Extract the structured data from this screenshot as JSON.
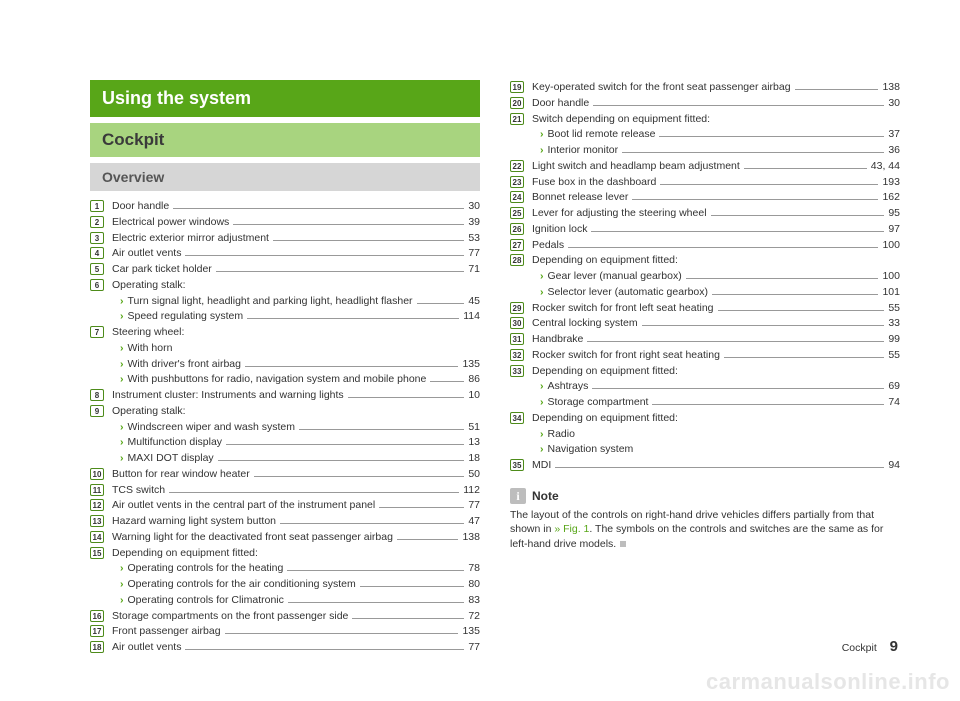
{
  "colors": {
    "banner_dark": "#58a618",
    "banner_light": "#a8d47f",
    "banner_gray": "#d6d6d6",
    "text": "#333333",
    "accent": "#58a618",
    "watermark": "#e6e6e6"
  },
  "typography": {
    "body_pt": 10.5,
    "banner_dark_pt": 18,
    "banner_light_pt": 17,
    "banner_gray_pt": 14
  },
  "banners": {
    "using": "Using the system",
    "cockpit": "Cockpit",
    "overview": "Overview"
  },
  "note": {
    "icon": "i",
    "title": "Note",
    "body_pre": "The layout of the controls on right-hand drive vehicles differs partially from that shown in ",
    "fig": "» Fig. 1",
    "body_post": ". The symbols on the controls and switches are the same as for left-hand drive models."
  },
  "footer": {
    "label": "Cockpit",
    "page": "9"
  },
  "watermark": "carmanualsonline.info",
  "left": [
    {
      "n": "1",
      "t": "Door handle",
      "p": "30"
    },
    {
      "n": "2",
      "t": "Electrical power windows",
      "p": "39"
    },
    {
      "n": "3",
      "t": "Electric exterior mirror adjustment",
      "p": "53"
    },
    {
      "n": "4",
      "t": "Air outlet vents",
      "p": "77"
    },
    {
      "n": "5",
      "t": "Car park ticket holder",
      "p": "71"
    },
    {
      "n": "6",
      "t": "Operating stalk:",
      "sub": [
        {
          "t": "Turn signal light, headlight and parking light, headlight flasher",
          "p": "45"
        },
        {
          "t": "Speed regulating system",
          "p": "114"
        }
      ]
    },
    {
      "n": "7",
      "t": "Steering wheel:",
      "sub": [
        {
          "t": "With horn",
          "p": ""
        },
        {
          "t": "With driver's front airbag",
          "p": "135"
        },
        {
          "t": "With pushbuttons for radio, navigation system and mobile phone",
          "p": "86",
          "wrap": true
        }
      ]
    },
    {
      "n": "8",
      "t": "Instrument cluster: Instruments and warning lights",
      "p": "10"
    },
    {
      "n": "9",
      "t": "Operating stalk:",
      "sub": [
        {
          "t": "Windscreen wiper and wash system",
          "p": "51"
        },
        {
          "t": "Multifunction display",
          "p": "13"
        },
        {
          "t": "MAXI DOT display",
          "p": "18"
        }
      ]
    },
    {
      "n": "10",
      "t": "Button for rear window heater",
      "p": "50"
    },
    {
      "n": "11",
      "t": "TCS switch",
      "p": "112"
    },
    {
      "n": "12",
      "t": "Air outlet vents in the central part of the instrument panel",
      "p": "77"
    },
    {
      "n": "13",
      "t": "Hazard warning light system button",
      "p": "47"
    },
    {
      "n": "14",
      "t": "Warning light for the deactivated front seat passenger airbag",
      "p": "138"
    },
    {
      "n": "15",
      "t": "Depending on equipment fitted:",
      "sub": [
        {
          "t": "Operating controls for the heating",
          "p": "78"
        },
        {
          "t": "Operating controls for the air conditioning system",
          "p": "80"
        },
        {
          "t": "Operating controls for Climatronic",
          "p": "83"
        }
      ]
    },
    {
      "n": "16",
      "t": "Storage compartments on the front passenger side",
      "p": "72"
    },
    {
      "n": "17",
      "t": "Front passenger airbag",
      "p": "135"
    },
    {
      "n": "18",
      "t": "Air outlet vents",
      "p": "77"
    }
  ],
  "right": [
    {
      "n": "19",
      "t": "Key-operated switch for the front seat passenger airbag",
      "p": "138"
    },
    {
      "n": "20",
      "t": "Door handle",
      "p": "30"
    },
    {
      "n": "21",
      "t": "Switch depending on equipment fitted:",
      "sub": [
        {
          "t": "Boot lid remote release",
          "p": "37"
        },
        {
          "t": "Interior monitor",
          "p": "36"
        }
      ]
    },
    {
      "n": "22",
      "t": "Light switch and headlamp beam adjustment",
      "p": "43, 44"
    },
    {
      "n": "23",
      "t": "Fuse box in the dashboard",
      "p": "193"
    },
    {
      "n": "24",
      "t": "Bonnet release lever",
      "p": "162"
    },
    {
      "n": "25",
      "t": "Lever for adjusting the steering wheel",
      "p": "95"
    },
    {
      "n": "26",
      "t": "Ignition lock",
      "p": "97"
    },
    {
      "n": "27",
      "t": "Pedals",
      "p": "100"
    },
    {
      "n": "28",
      "t": "Depending on equipment fitted:",
      "sub": [
        {
          "t": "Gear lever (manual gearbox)",
          "p": "100"
        },
        {
          "t": "Selector lever (automatic gearbox)",
          "p": "101"
        }
      ]
    },
    {
      "n": "29",
      "t": "Rocker switch for front left seat heating",
      "p": "55"
    },
    {
      "n": "30",
      "t": "Central locking system",
      "p": "33"
    },
    {
      "n": "31",
      "t": "Handbrake",
      "p": "99"
    },
    {
      "n": "32",
      "t": "Rocker switch for front right seat heating",
      "p": "55"
    },
    {
      "n": "33",
      "t": "Depending on equipment fitted:",
      "sub": [
        {
          "t": "Ashtrays",
          "p": "69"
        },
        {
          "t": "Storage compartment",
          "p": "74"
        }
      ]
    },
    {
      "n": "34",
      "t": "Depending on equipment fitted:",
      "sub": [
        {
          "t": "Radio",
          "p": ""
        },
        {
          "t": "Navigation system",
          "p": ""
        }
      ]
    },
    {
      "n": "35",
      "t": "MDI",
      "p": "94"
    }
  ]
}
